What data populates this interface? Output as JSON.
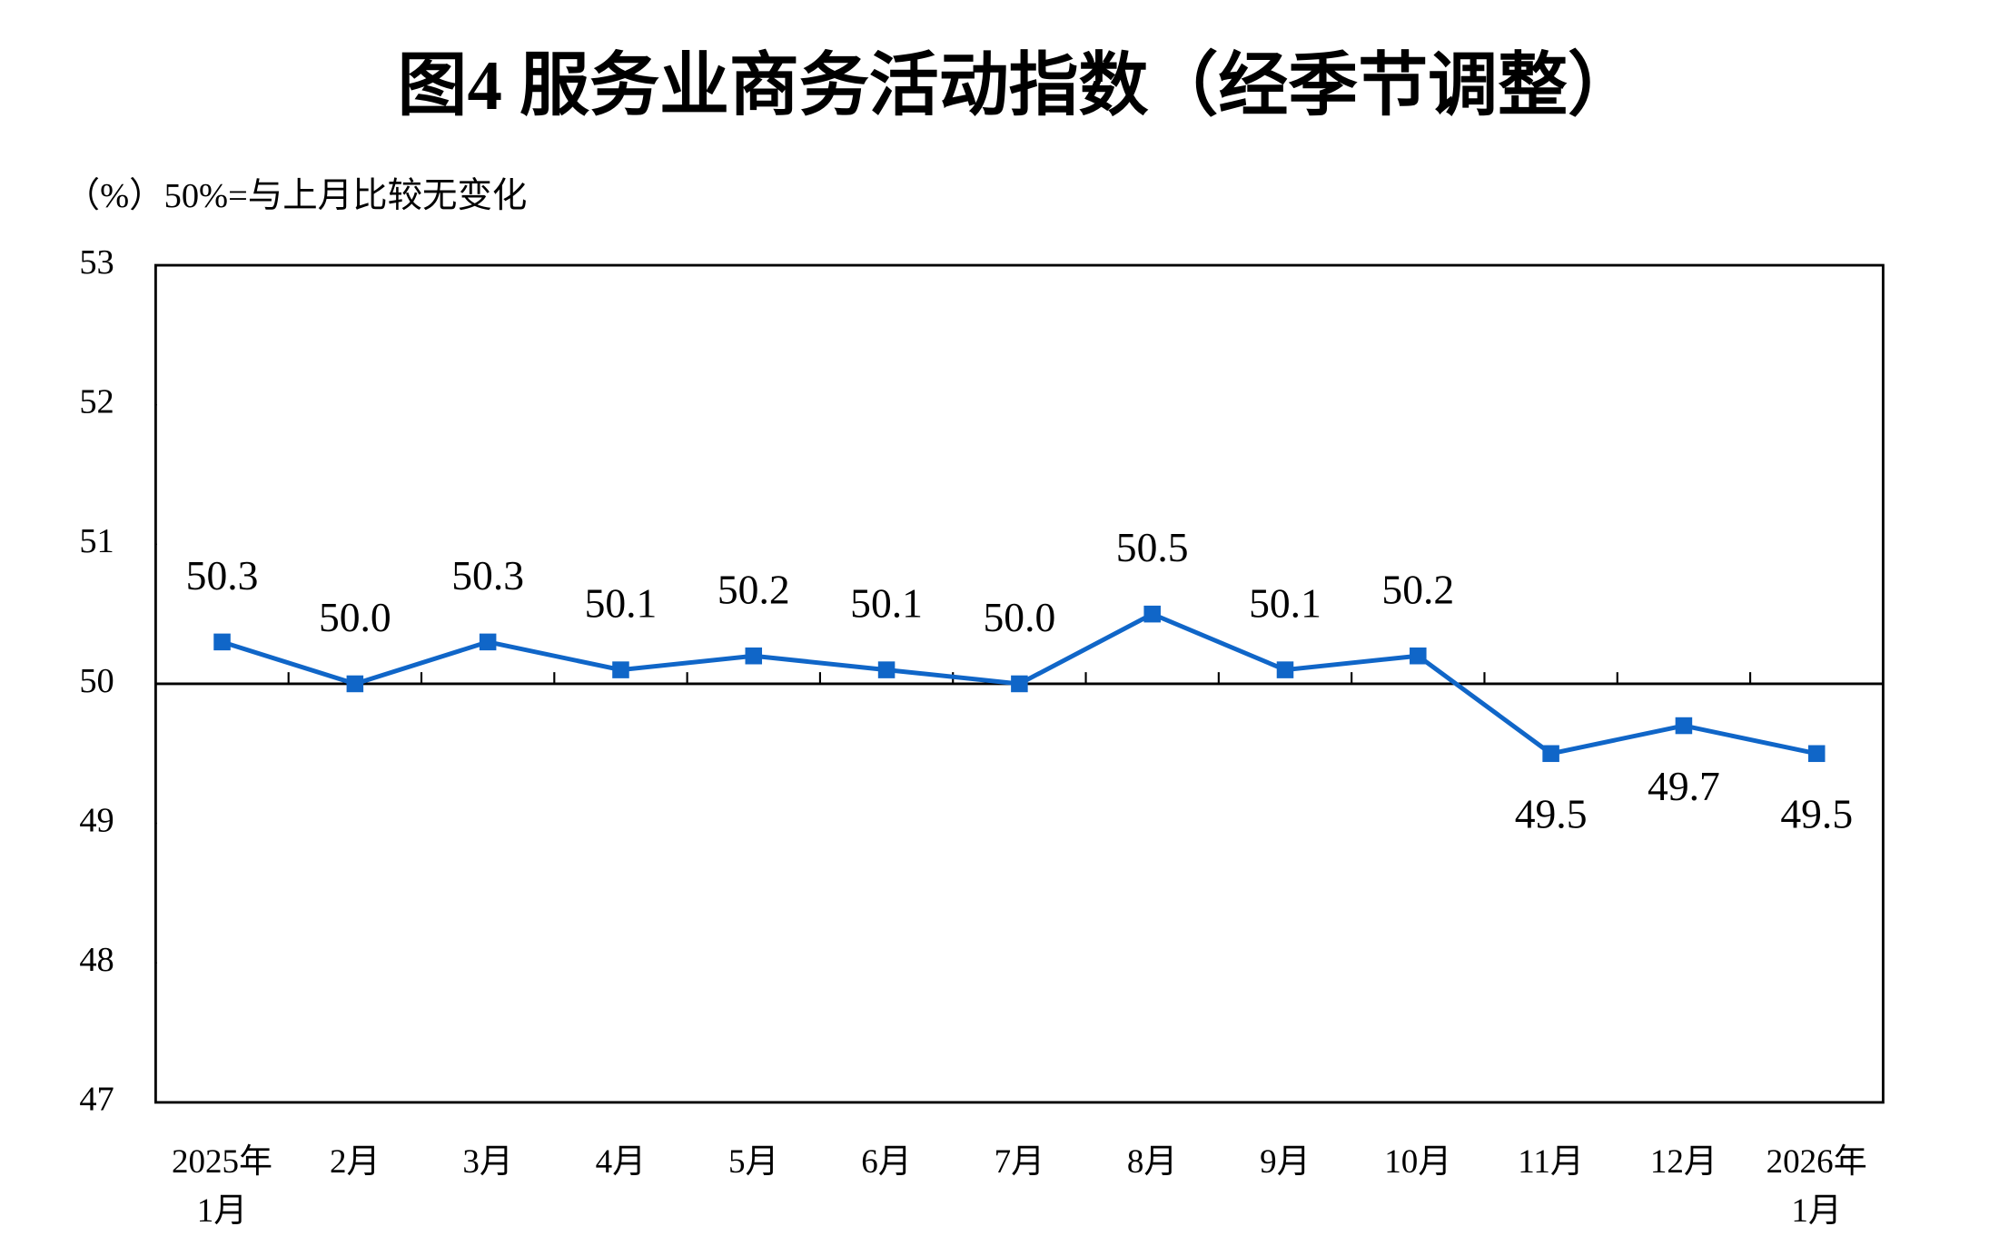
{
  "chart_data": {
    "type": "line",
    "title": "图4  服务业商务活动指数（经季节调整）",
    "subtitle": "（%）50%=与上月比较无变化",
    "categories": [
      "2025年\n1月",
      "2月",
      "3月",
      "4月",
      "5月",
      "6月",
      "7月",
      "8月",
      "9月",
      "10月",
      "11月",
      "12月",
      "2026年\n1月"
    ],
    "series": [
      {
        "color": "#1066c8",
        "values": [
          50.3,
          50.0,
          50.3,
          50.1,
          50.2,
          50.1,
          50.0,
          50.5,
          50.1,
          50.2,
          49.5,
          49.7,
          49.5
        ],
        "value_labels": [
          "50.3",
          "50.0",
          "50.3",
          "50.1",
          "50.2",
          "50.1",
          "50.0",
          "50.5",
          "50.1",
          "50.2",
          "49.5",
          "49.7",
          "49.5"
        ]
      }
    ],
    "ylim": [
      47,
      53
    ],
    "yticks": [
      47,
      48,
      49,
      50,
      51,
      52,
      53
    ],
    "reference_line": 50,
    "grid": false
  }
}
